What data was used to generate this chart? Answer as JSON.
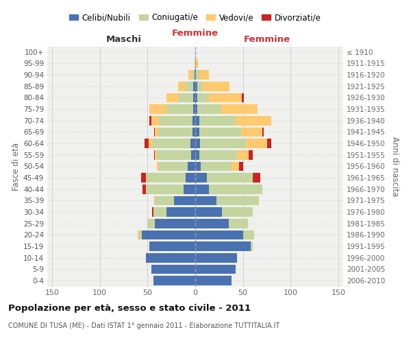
{
  "age_groups": [
    "100+",
    "95-99",
    "90-94",
    "85-89",
    "80-84",
    "75-79",
    "70-74",
    "65-69",
    "60-64",
    "55-59",
    "50-54",
    "45-49",
    "40-44",
    "35-39",
    "30-34",
    "25-29",
    "20-24",
    "15-19",
    "10-14",
    "5-9",
    "0-4"
  ],
  "birth_years": [
    "≤ 1910",
    "1911-1915",
    "1916-1920",
    "1921-1925",
    "1926-1930",
    "1931-1935",
    "1936-1940",
    "1941-1945",
    "1946-1950",
    "1951-1955",
    "1956-1960",
    "1961-1965",
    "1966-1970",
    "1971-1975",
    "1976-1980",
    "1981-1985",
    "1986-1990",
    "1991-1995",
    "1996-2000",
    "2001-2005",
    "2006-2010"
  ],
  "male_celibe": [
    0,
    0,
    1,
    2,
    2,
    2,
    3,
    3,
    5,
    4,
    8,
    10,
    12,
    22,
    30,
    42,
    56,
    48,
    52,
    46,
    44
  ],
  "male_coniugato": [
    0,
    0,
    2,
    8,
    16,
    28,
    35,
    36,
    40,
    36,
    30,
    42,
    40,
    20,
    14,
    8,
    3,
    0,
    0,
    0,
    0
  ],
  "male_vedovo": [
    0,
    1,
    4,
    8,
    12,
    18,
    8,
    3,
    4,
    2,
    2,
    0,
    0,
    1,
    0,
    0,
    1,
    0,
    0,
    0,
    0
  ],
  "male_divorziato": [
    0,
    0,
    0,
    0,
    0,
    0,
    2,
    1,
    4,
    1,
    0,
    5,
    3,
    0,
    1,
    0,
    0,
    0,
    0,
    0,
    0
  ],
  "female_nubile": [
    0,
    0,
    1,
    2,
    2,
    2,
    4,
    4,
    5,
    4,
    6,
    12,
    14,
    22,
    28,
    35,
    50,
    58,
    44,
    42,
    38
  ],
  "female_coniugata": [
    0,
    0,
    3,
    6,
    12,
    25,
    38,
    44,
    48,
    40,
    32,
    48,
    56,
    45,
    32,
    20,
    12,
    2,
    0,
    0,
    0
  ],
  "female_vedova": [
    0,
    3,
    10,
    28,
    35,
    38,
    38,
    22,
    22,
    12,
    8,
    0,
    0,
    0,
    0,
    0,
    0,
    0,
    0,
    0,
    0
  ],
  "female_divorziata": [
    0,
    0,
    0,
    0,
    2,
    0,
    0,
    2,
    5,
    4,
    4,
    8,
    0,
    0,
    0,
    0,
    0,
    0,
    0,
    0,
    0
  ],
  "colors": {
    "celibe": "#4a72b0",
    "coniugato": "#c5d5a0",
    "vedovo": "#ffc96e",
    "divorziato": "#cc2222"
  },
  "xlim": 155,
  "title": "Popolazione per età, sesso e stato civile - 2011",
  "subtitle": "COMUNE DI TUSA (ME) - Dati ISTAT 1° gennaio 2011 - Elaborazione TUTTITALIA.IT",
  "label_maschi": "Maschi",
  "label_femmine": "Femmine",
  "ylabel_left": "Fasce di età",
  "ylabel_right": "Anni di nascita",
  "legend_labels": [
    "Celibi/Nubili",
    "Coniugati/e",
    "Vedovi/e",
    "Divorziati/e"
  ],
  "bg_color": "#f0f0ee",
  "grid_color": "#d0d0d0"
}
